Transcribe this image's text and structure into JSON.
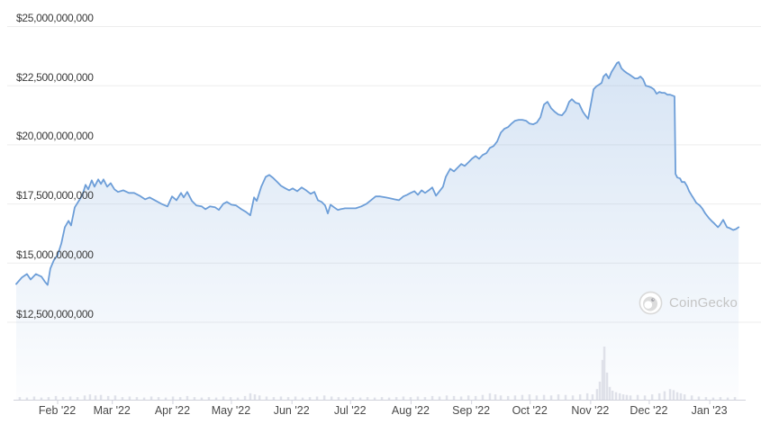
{
  "watermark": {
    "text": "CoinGecko",
    "icon": "coingecko-gecko-icon"
  },
  "colors": {
    "line": "#6d9ed8",
    "area_top": "rgba(109,158,216,0.30)",
    "area_bottom": "rgba(109,158,216,0.02)",
    "grid": "#ededed",
    "axis": "#d1d2dc",
    "volume_bar": "#dfe1e9",
    "y_label": "#3a3a3a",
    "x_label": "#4a4a4a",
    "watermark_text": "#c5c5c5"
  },
  "chart_data": {
    "type": "area",
    "title": "",
    "legend": false,
    "grid": true,
    "x_axis": {
      "tick_labels": [
        "Feb '22",
        "Mar '22",
        "Apr '22",
        "May '22",
        "Jun '22",
        "Jul '22",
        "Aug '22",
        "Sep '22",
        "Oct '22",
        "Nov '22",
        "Dec '22",
        "Jan '23"
      ],
      "tick_days": [
        21,
        49,
        80,
        110,
        141,
        171,
        202,
        233,
        263,
        294,
        324,
        355
      ],
      "range_days": [
        0,
        370
      ]
    },
    "y_axis": {
      "tick_labels": [
        "$25,000,000,000",
        "$22,500,000,000",
        "$20,000,000,000",
        "$17,500,000,000",
        "$15,000,000,000",
        "$12,500,000,000"
      ],
      "tick_values_billions": [
        25,
        22.5,
        20,
        17.5,
        15,
        12.5
      ],
      "range_billions": [
        12.5,
        25
      ]
    },
    "series": [
      {
        "name": "market_cap_usd_billions",
        "points": [
          [
            0,
            14.1
          ],
          [
            2.8,
            14.37
          ],
          [
            5.5,
            14.52
          ],
          [
            7.4,
            14.29
          ],
          [
            10.1,
            14.52
          ],
          [
            12.9,
            14.41
          ],
          [
            14.8,
            14.18
          ],
          [
            16.1,
            14.06
          ],
          [
            17.5,
            14.75
          ],
          [
            19.4,
            15.13
          ],
          [
            21.2,
            15.32
          ],
          [
            23.1,
            15.81
          ],
          [
            24.9,
            16.5
          ],
          [
            26.8,
            16.77
          ],
          [
            28.1,
            16.57
          ],
          [
            30,
            17.34
          ],
          [
            32.3,
            17.64
          ],
          [
            34.1,
            17.91
          ],
          [
            35.5,
            18.29
          ],
          [
            36.9,
            18.1
          ],
          [
            38.7,
            18.48
          ],
          [
            40.1,
            18.21
          ],
          [
            42,
            18.52
          ],
          [
            43.4,
            18.33
          ],
          [
            44.7,
            18.52
          ],
          [
            46.6,
            18.21
          ],
          [
            48.4,
            18.36
          ],
          [
            50.3,
            18.1
          ],
          [
            52.1,
            17.99
          ],
          [
            54.9,
            18.06
          ],
          [
            57.7,
            17.95
          ],
          [
            60.4,
            17.95
          ],
          [
            63.2,
            17.83
          ],
          [
            66,
            17.68
          ],
          [
            68.3,
            17.76
          ],
          [
            71,
            17.64
          ],
          [
            74.3,
            17.49
          ],
          [
            77.5,
            17.38
          ],
          [
            79.8,
            17.8
          ],
          [
            82.1,
            17.64
          ],
          [
            84.4,
            17.95
          ],
          [
            85.8,
            17.76
          ],
          [
            87.6,
            17.99
          ],
          [
            90,
            17.61
          ],
          [
            92.3,
            17.42
          ],
          [
            95,
            17.38
          ],
          [
            96.9,
            17.26
          ],
          [
            99.2,
            17.38
          ],
          [
            101.9,
            17.34
          ],
          [
            103.8,
            17.23
          ],
          [
            106.1,
            17.49
          ],
          [
            107.9,
            17.57
          ],
          [
            110.2,
            17.45
          ],
          [
            112.6,
            17.42
          ],
          [
            115.3,
            17.26
          ],
          [
            117.6,
            17.15
          ],
          [
            119.9,
            17.0
          ],
          [
            121.8,
            17.76
          ],
          [
            123.2,
            17.61
          ],
          [
            125.5,
            18.21
          ],
          [
            127.8,
            18.63
          ],
          [
            129.6,
            18.71
          ],
          [
            131.5,
            18.59
          ],
          [
            133.8,
            18.4
          ],
          [
            135.6,
            18.25
          ],
          [
            137.9,
            18.14
          ],
          [
            139.8,
            18.06
          ],
          [
            141.6,
            18.14
          ],
          [
            143.9,
            18.02
          ],
          [
            146.2,
            18.18
          ],
          [
            148.5,
            18.06
          ],
          [
            150.8,
            17.91
          ],
          [
            152.7,
            17.99
          ],
          [
            154.5,
            17.64
          ],
          [
            156.4,
            17.57
          ],
          [
            158.2,
            17.42
          ],
          [
            159.6,
            17.08
          ],
          [
            161,
            17.45
          ],
          [
            162.8,
            17.34
          ],
          [
            164.7,
            17.23
          ],
          [
            166.1,
            17.26
          ],
          [
            168.4,
            17.3
          ],
          [
            171.1,
            17.3
          ],
          [
            173.9,
            17.3
          ],
          [
            176.7,
            17.38
          ],
          [
            179.4,
            17.49
          ],
          [
            181.7,
            17.64
          ],
          [
            184.1,
            17.8
          ],
          [
            186.4,
            17.8
          ],
          [
            189.1,
            17.76
          ],
          [
            191.4,
            17.72
          ],
          [
            193.7,
            17.68
          ],
          [
            196,
            17.64
          ],
          [
            198.3,
            17.8
          ],
          [
            200.2,
            17.87
          ],
          [
            202,
            17.95
          ],
          [
            203.9,
            18.02
          ],
          [
            205.7,
            17.87
          ],
          [
            207.6,
            18.06
          ],
          [
            209.4,
            17.95
          ],
          [
            211.3,
            18.06
          ],
          [
            213.1,
            18.18
          ],
          [
            215,
            17.83
          ],
          [
            216.8,
            18.02
          ],
          [
            218.6,
            18.21
          ],
          [
            220,
            18.63
          ],
          [
            222.3,
            18.97
          ],
          [
            224.2,
            18.86
          ],
          [
            226,
            19.01
          ],
          [
            227.9,
            19.17
          ],
          [
            229.7,
            19.09
          ],
          [
            231.6,
            19.24
          ],
          [
            233.4,
            19.39
          ],
          [
            235.3,
            19.51
          ],
          [
            237.1,
            19.39
          ],
          [
            238.9,
            19.55
          ],
          [
            240.8,
            19.63
          ],
          [
            242.6,
            19.85
          ],
          [
            244.5,
            19.93
          ],
          [
            246.3,
            20.12
          ],
          [
            248.2,
            20.5
          ],
          [
            250,
            20.66
          ],
          [
            251.9,
            20.73
          ],
          [
            253.7,
            20.88
          ],
          [
            255.5,
            21.0
          ],
          [
            257.4,
            21.04
          ],
          [
            259.2,
            21.04
          ],
          [
            261.1,
            21.0
          ],
          [
            262.9,
            20.88
          ],
          [
            264.8,
            20.85
          ],
          [
            266.6,
            20.92
          ],
          [
            268.5,
            21.15
          ],
          [
            270.3,
            21.68
          ],
          [
            272.1,
            21.8
          ],
          [
            274,
            21.53
          ],
          [
            275.8,
            21.38
          ],
          [
            277.7,
            21.26
          ],
          [
            279.5,
            21.23
          ],
          [
            281.4,
            21.42
          ],
          [
            283.2,
            21.8
          ],
          [
            284.6,
            21.91
          ],
          [
            286.5,
            21.76
          ],
          [
            288.3,
            21.72
          ],
          [
            290.2,
            21.38
          ],
          [
            291.5,
            21.23
          ],
          [
            292.9,
            21.08
          ],
          [
            294.3,
            21.68
          ],
          [
            295.7,
            22.33
          ],
          [
            297.1,
            22.45
          ],
          [
            298.4,
            22.52
          ],
          [
            299.8,
            22.6
          ],
          [
            300.8,
            22.87
          ],
          [
            302.1,
            22.98
          ],
          [
            303.5,
            22.79
          ],
          [
            304.9,
            23.06
          ],
          [
            306.3,
            23.25
          ],
          [
            307.7,
            23.44
          ],
          [
            308.6,
            23.48
          ],
          [
            310,
            23.21
          ],
          [
            311.4,
            23.1
          ],
          [
            312.7,
            23.02
          ],
          [
            314.1,
            22.95
          ],
          [
            315.5,
            22.87
          ],
          [
            316.9,
            22.79
          ],
          [
            318.3,
            22.79
          ],
          [
            319.7,
            22.87
          ],
          [
            321.1,
            22.75
          ],
          [
            322.4,
            22.48
          ],
          [
            323.8,
            22.45
          ],
          [
            325.2,
            22.41
          ],
          [
            326.6,
            22.33
          ],
          [
            328,
            22.14
          ],
          [
            329.4,
            22.22
          ],
          [
            330.7,
            22.18
          ],
          [
            332.1,
            22.18
          ],
          [
            333.5,
            22.1
          ],
          [
            334.9,
            22.1
          ],
          [
            336.3,
            22.06
          ],
          [
            337.2,
            22.03
          ],
          [
            337.7,
            18.75
          ],
          [
            338.6,
            18.6
          ],
          [
            340,
            18.56
          ],
          [
            340.9,
            18.41
          ],
          [
            342.3,
            18.41
          ],
          [
            343.7,
            18.22
          ],
          [
            344.6,
            18.03
          ],
          [
            346,
            17.84
          ],
          [
            346.9,
            17.72
          ],
          [
            348.3,
            17.53
          ],
          [
            350.1,
            17.42
          ],
          [
            351.5,
            17.27
          ],
          [
            352.9,
            17.08
          ],
          [
            354.7,
            16.89
          ],
          [
            356.1,
            16.77
          ],
          [
            357.5,
            16.66
          ],
          [
            359.4,
            16.5
          ],
          [
            360.3,
            16.58
          ],
          [
            362.1,
            16.81
          ],
          [
            364,
            16.5
          ],
          [
            365.4,
            16.46
          ],
          [
            367.2,
            16.38
          ],
          [
            368.6,
            16.42
          ],
          [
            370,
            16.5
          ]
        ]
      }
    ],
    "volume": {
      "unit": "percent_of_max",
      "bars": [
        [
          1.8,
          5
        ],
        [
          5.5,
          4
        ],
        [
          9.2,
          6
        ],
        [
          12.9,
          4
        ],
        [
          16.6,
          5
        ],
        [
          20.3,
          7
        ],
        [
          24,
          5
        ],
        [
          27.7,
          6
        ],
        [
          31.4,
          5
        ],
        [
          35.1,
          8
        ],
        [
          37.8,
          10
        ],
        [
          40.6,
          8
        ],
        [
          43.4,
          9
        ],
        [
          47.1,
          7
        ],
        [
          50.7,
          8
        ],
        [
          54.4,
          5
        ],
        [
          58.1,
          6
        ],
        [
          61.8,
          5
        ],
        [
          65.5,
          4
        ],
        [
          69.2,
          6
        ],
        [
          72.9,
          5
        ],
        [
          76.6,
          4
        ],
        [
          80.3,
          6
        ],
        [
          84,
          5
        ],
        [
          87.6,
          7
        ],
        [
          91.3,
          5
        ],
        [
          95,
          4
        ],
        [
          98.7,
          5
        ],
        [
          102.4,
          4
        ],
        [
          106.1,
          6
        ],
        [
          109.8,
          5
        ],
        [
          113.5,
          4
        ],
        [
          117.2,
          7
        ],
        [
          119.9,
          12
        ],
        [
          122.2,
          10
        ],
        [
          124.6,
          8
        ],
        [
          128.2,
          6
        ],
        [
          131.9,
          5
        ],
        [
          135.6,
          6
        ],
        [
          139.3,
          5
        ],
        [
          143,
          6
        ],
        [
          146.7,
          4
        ],
        [
          150.4,
          5
        ],
        [
          154.1,
          6
        ],
        [
          157.8,
          8
        ],
        [
          161.5,
          6
        ],
        [
          165.1,
          5
        ],
        [
          168.8,
          4
        ],
        [
          172.5,
          5
        ],
        [
          176.2,
          4
        ],
        [
          179.9,
          5
        ],
        [
          183.6,
          4
        ],
        [
          187.3,
          5
        ],
        [
          191,
          4
        ],
        [
          194.7,
          5
        ],
        [
          198.3,
          6
        ],
        [
          202,
          5
        ],
        [
          205.7,
          6
        ],
        [
          209.4,
          5
        ],
        [
          213.1,
          7
        ],
        [
          216.8,
          6
        ],
        [
          220.5,
          8
        ],
        [
          224.2,
          7
        ],
        [
          227.9,
          6
        ],
        [
          231.6,
          8
        ],
        [
          235.3,
          7
        ],
        [
          238.9,
          9
        ],
        [
          242.6,
          12
        ],
        [
          245.4,
          10
        ],
        [
          248.2,
          8
        ],
        [
          251.9,
          7
        ],
        [
          255.5,
          8
        ],
        [
          259.2,
          9
        ],
        [
          262.9,
          10
        ],
        [
          266.6,
          8
        ],
        [
          270.3,
          9
        ],
        [
          274,
          8
        ],
        [
          277.7,
          10
        ],
        [
          281.4,
          9
        ],
        [
          285.1,
          8
        ],
        [
          288.8,
          10
        ],
        [
          292.5,
          12
        ],
        [
          295.2,
          10
        ],
        [
          297.5,
          20
        ],
        [
          298.9,
          34
        ],
        [
          300.3,
          75
        ],
        [
          301.2,
          100
        ],
        [
          302.6,
          51
        ],
        [
          304,
          24
        ],
        [
          305.4,
          17
        ],
        [
          307.2,
          14
        ],
        [
          309.1,
          12
        ],
        [
          310.9,
          10
        ],
        [
          312.7,
          9
        ],
        [
          314.6,
          8
        ],
        [
          318.3,
          9
        ],
        [
          322,
          8
        ],
        [
          325.7,
          10
        ],
        [
          329.4,
          12
        ],
        [
          332.1,
          16
        ],
        [
          334.9,
          20
        ],
        [
          336.7,
          18
        ],
        [
          338.6,
          14
        ],
        [
          340.4,
          12
        ],
        [
          342.3,
          10
        ],
        [
          346,
          8
        ],
        [
          349.6,
          6
        ],
        [
          353.3,
          5
        ],
        [
          357,
          4
        ],
        [
          360.7,
          5
        ],
        [
          364.4,
          4
        ],
        [
          368.1,
          5
        ]
      ]
    }
  }
}
